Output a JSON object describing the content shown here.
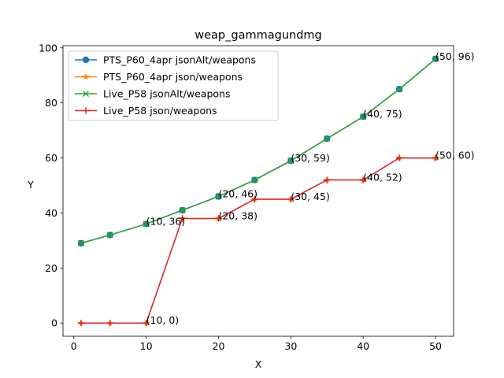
{
  "chart_data": {
    "type": "line",
    "title": "weap_gammagundmg",
    "xlabel": "X",
    "ylabel": "Y",
    "xlim": [
      -1.5,
      52.5
    ],
    "ylim": [
      -4.8,
      100.8
    ],
    "xticks": [
      0,
      10,
      20,
      30,
      40,
      50
    ],
    "yticks": [
      0,
      20,
      40,
      60,
      80,
      100
    ],
    "grid": false,
    "legend_position": "upper-left",
    "series": [
      {
        "name": "PTS_P60_4apr jsonAlt/weapons",
        "color": "#1f77b4",
        "marker": "circle",
        "x": [
          1,
          5,
          10,
          15,
          20,
          25,
          30,
          35,
          40,
          45,
          50
        ],
        "y": [
          29,
          32,
          36,
          41,
          46,
          52,
          59,
          67,
          75,
          85,
          96
        ]
      },
      {
        "name": "PTS_P60_4apr json/weapons",
        "color": "#ff7f0e",
        "marker": "star",
        "x": [
          1,
          5,
          10,
          15,
          20,
          25,
          30,
          35,
          40,
          45,
          50
        ],
        "y": [
          0,
          0,
          0,
          38,
          38,
          45,
          45,
          52,
          52,
          60,
          60
        ]
      },
      {
        "name": "Live_P58 jsonAlt/weapons",
        "color": "#2ca02c",
        "marker": "x",
        "x": [
          1,
          5,
          10,
          15,
          20,
          25,
          30,
          35,
          40,
          45,
          50
        ],
        "y": [
          29,
          32,
          36,
          41,
          46,
          52,
          59,
          67,
          75,
          85,
          96
        ]
      },
      {
        "name": "Live_P58 json/weapons",
        "color": "#d62728",
        "marker": "plus",
        "x": [
          1,
          5,
          10,
          15,
          20,
          25,
          30,
          35,
          40,
          45,
          50
        ],
        "y": [
          0,
          0,
          0,
          38,
          38,
          45,
          45,
          52,
          52,
          60,
          60
        ]
      }
    ],
    "annotations": [
      {
        "text": "(10, 36)",
        "x": 10,
        "y": 36
      },
      {
        "text": "(20, 46)",
        "x": 20,
        "y": 46
      },
      {
        "text": "(30, 59)",
        "x": 30,
        "y": 59
      },
      {
        "text": "(40, 75)",
        "x": 40,
        "y": 75
      },
      {
        "text": "(50, 96)",
        "x": 50,
        "y": 96
      },
      {
        "text": "(10, 0)",
        "x": 10,
        "y": 0
      },
      {
        "text": "(20, 38)",
        "x": 20,
        "y": 38
      },
      {
        "text": "(30, 45)",
        "x": 30,
        "y": 45
      },
      {
        "text": "(40, 52)",
        "x": 40,
        "y": 52
      },
      {
        "text": "(50, 60)",
        "x": 50,
        "y": 60
      }
    ]
  }
}
